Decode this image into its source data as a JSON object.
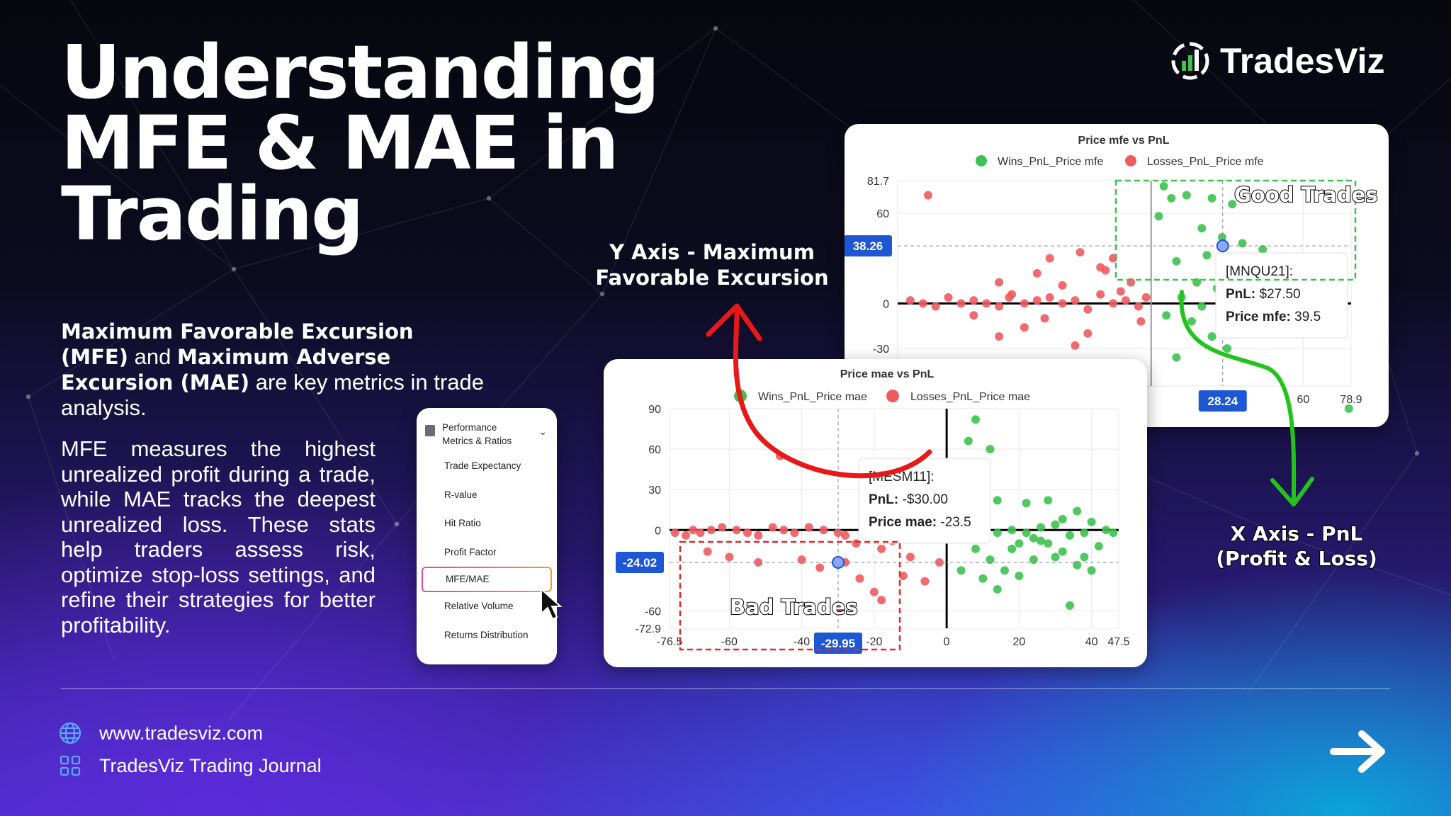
{
  "title": {
    "line1": "Understanding",
    "line2": "MFE & MAE in",
    "line3": "Trading"
  },
  "brand": {
    "name": "TradesViz",
    "icon": "tradesviz-logo-icon"
  },
  "intro": {
    "term1": "Maximum Favorable Excursion (MFE)",
    "connector": "and",
    "term2": "Maximum Adverse Excursion (MAE)",
    "tail": "are key metrics in trade analysis."
  },
  "description": "MFE measures the highest unrealized profit during a trade, while MAE tracks the deepest unrealized loss. These stats help traders assess risk, optimize stop-loss settings, and refine their strategies for better profitability.",
  "menu": {
    "header": "Performance Metrics & Ratios",
    "items": [
      "Trade Expectancy",
      "R-value",
      "Hit Ratio",
      "Profit Factor",
      "MFE/MAE",
      "Relative Volume",
      "Returns Distribution"
    ],
    "selected": "MFE/MAE"
  },
  "callouts": {
    "y_axis": "Y Axis - Maximum Favorable Excursion",
    "x_axis": "X Axis - PnL (Profit & Loss)",
    "good": "Good Trades",
    "bad": "Bad Trades"
  },
  "footer": {
    "website": "www.tradesviz.com",
    "journal": "TradesViz Trading Journal"
  },
  "colors": {
    "win": "#3cc24f",
    "loss": "#f05a5f",
    "crosshair_label": "#1d57d3",
    "arrow_red": "#e81818",
    "arrow_green": "#22c41c"
  },
  "chart_data": [
    {
      "type": "scatter",
      "title": "Price mfe vs PnL",
      "series": [
        {
          "name": "Wins_PnL_Price mfe"
        },
        {
          "name": "Losses_PnL_Price mfe"
        }
      ],
      "xlim": [
        -100,
        78.9
      ],
      "ylim": [
        -55,
        81.7
      ],
      "x_ticks": [
        "60",
        "78.9"
      ],
      "y_ticks": [
        "81.7",
        "60",
        "0",
        "-30"
      ],
      "crosshair": {
        "x": "28.24",
        "y": "38.26"
      },
      "tooltip": {
        "symbol": "[MNQU21]:",
        "pnl_label": "PnL:",
        "pnl": "$27.50",
        "metric_label": "Price mfe:",
        "metric": "39.5"
      },
      "wins": [
        [
          5,
          78
        ],
        [
          8,
          70
        ],
        [
          14,
          72
        ],
        [
          24,
          70
        ],
        [
          32,
          66
        ],
        [
          3,
          58
        ],
        [
          20,
          50
        ],
        [
          28,
          44
        ],
        [
          36,
          40
        ],
        [
          44,
          36
        ],
        [
          22,
          32
        ],
        [
          10,
          28
        ],
        [
          30,
          24
        ],
        [
          40,
          20
        ],
        [
          50,
          26
        ],
        [
          18,
          14
        ],
        [
          26,
          10
        ],
        [
          34,
          6
        ],
        [
          42,
          8
        ],
        [
          52,
          12
        ],
        [
          62,
          4
        ],
        [
          12,
          4
        ],
        [
          20,
          -2
        ],
        [
          28,
          -6
        ],
        [
          36,
          2
        ],
        [
          16,
          -12
        ],
        [
          24,
          -22
        ],
        [
          30,
          -30
        ],
        [
          6,
          -8
        ],
        [
          38,
          -14
        ],
        [
          46,
          -20
        ],
        [
          10,
          -36
        ],
        [
          56,
          20
        ],
        [
          64,
          16
        ],
        [
          70,
          24
        ],
        [
          74,
          30
        ],
        [
          78,
          -70
        ],
        [
          60,
          10
        ],
        [
          48,
          2
        ],
        [
          56,
          -4
        ]
      ],
      "losses": [
        [
          -95,
          2
        ],
        [
          -90,
          0
        ],
        [
          -85,
          -2
        ],
        [
          -80,
          4
        ],
        [
          -75,
          0
        ],
        [
          -70,
          2
        ],
        [
          -65,
          0
        ],
        [
          -60,
          -2
        ],
        [
          -55,
          6
        ],
        [
          -50,
          0
        ],
        [
          -45,
          2
        ],
        [
          -40,
          4
        ],
        [
          -35,
          0
        ],
        [
          -30,
          2
        ],
        [
          -25,
          -4
        ],
        [
          -20,
          6
        ],
        [
          -15,
          0
        ],
        [
          -10,
          2
        ],
        [
          -5,
          -2
        ],
        [
          -2,
          4
        ],
        [
          -60,
          14
        ],
        [
          -45,
          20
        ],
        [
          -35,
          12
        ],
        [
          -20,
          24
        ],
        [
          -15,
          30
        ],
        [
          -28,
          34
        ],
        [
          -40,
          30
        ],
        [
          -8,
          14
        ],
        [
          -50,
          -16
        ],
        [
          -30,
          -28
        ],
        [
          -25,
          -20
        ],
        [
          -60,
          -22
        ],
        [
          -30,
          -40
        ],
        [
          -88,
          72
        ],
        [
          -18,
          22
        ],
        [
          -12,
          8
        ],
        [
          -42,
          -10
        ],
        [
          -4,
          -12
        ],
        [
          -70,
          -8
        ],
        [
          -56,
          4
        ]
      ]
    },
    {
      "type": "scatter",
      "title": "Price mae vs PnL",
      "series": [
        {
          "name": "Wins_PnL_Price mae"
        },
        {
          "name": "Losses_PnL_Price mae"
        }
      ],
      "xlim": [
        -76.5,
        47.5
      ],
      "ylim": [
        -72.9,
        90
      ],
      "x_ticks": [
        "-76.5",
        "-60",
        "-40",
        "-20",
        "0",
        "20",
        "40",
        "47.5"
      ],
      "y_ticks": [
        "90",
        "60",
        "30",
        "0",
        "-60",
        "-72.9"
      ],
      "crosshair": {
        "x": "-29.95",
        "y": "-24.02"
      },
      "tooltip": {
        "symbol": "[MESM11]:",
        "pnl_label": "PnL:",
        "pnl": "-$30.00",
        "metric_label": "Price mae:",
        "metric": "-23.5"
      },
      "wins": [
        [
          8,
          82
        ],
        [
          6,
          66
        ],
        [
          12,
          60
        ],
        [
          14,
          22
        ],
        [
          22,
          20
        ],
        [
          28,
          22
        ],
        [
          30,
          4
        ],
        [
          34,
          -4
        ],
        [
          36,
          14
        ],
        [
          40,
          6
        ],
        [
          44,
          0
        ],
        [
          46,
          -2
        ],
        [
          4,
          -6
        ],
        [
          8,
          -14
        ],
        [
          12,
          -22
        ],
        [
          16,
          -30
        ],
        [
          20,
          -34
        ],
        [
          24,
          -6
        ],
        [
          28,
          -10
        ],
        [
          32,
          -16
        ],
        [
          36,
          -26
        ],
        [
          40,
          -30
        ],
        [
          2,
          -2
        ],
        [
          6,
          -4
        ],
        [
          10,
          -2
        ],
        [
          14,
          -2
        ],
        [
          18,
          0
        ],
        [
          22,
          -2
        ],
        [
          26,
          -8
        ],
        [
          30,
          -20
        ],
        [
          34,
          -56
        ],
        [
          38,
          -20
        ],
        [
          42,
          -12
        ],
        [
          18,
          -14
        ],
        [
          24,
          -22
        ],
        [
          4,
          -30
        ],
        [
          10,
          -36
        ],
        [
          14,
          -44
        ],
        [
          20,
          -10
        ],
        [
          26,
          2
        ],
        [
          32,
          8
        ],
        [
          38,
          -2
        ]
      ],
      "losses": [
        [
          -75,
          -2
        ],
        [
          -72,
          -4
        ],
        [
          -70,
          0
        ],
        [
          -68,
          -2
        ],
        [
          -65,
          0
        ],
        [
          -62,
          2
        ],
        [
          -58,
          0
        ],
        [
          -55,
          -2
        ],
        [
          -52,
          -4
        ],
        [
          -48,
          2
        ],
        [
          -45,
          0
        ],
        [
          -42,
          -2
        ],
        [
          -38,
          2
        ],
        [
          -34,
          0
        ],
        [
          -30,
          -2
        ],
        [
          -28,
          -4
        ],
        [
          -25,
          -10
        ],
        [
          -22,
          -6
        ],
        [
          -18,
          -14
        ],
        [
          -15,
          -8
        ],
        [
          -12,
          -2
        ],
        [
          -8,
          -6
        ],
        [
          -4,
          -2
        ],
        [
          -2,
          -24
        ],
        [
          -60,
          -20
        ],
        [
          -52,
          -24
        ],
        [
          -40,
          -22
        ],
        [
          -35,
          -28
        ],
        [
          -24,
          -36
        ],
        [
          -20,
          -46
        ],
        [
          -18,
          -52
        ],
        [
          -12,
          -34
        ],
        [
          -6,
          -38
        ],
        [
          -14,
          -6
        ],
        [
          -46,
          55
        ],
        [
          -10,
          -20
        ],
        [
          -28,
          -24
        ],
        [
          -66,
          -16
        ],
        [
          -30,
          -60
        ]
      ]
    }
  ]
}
